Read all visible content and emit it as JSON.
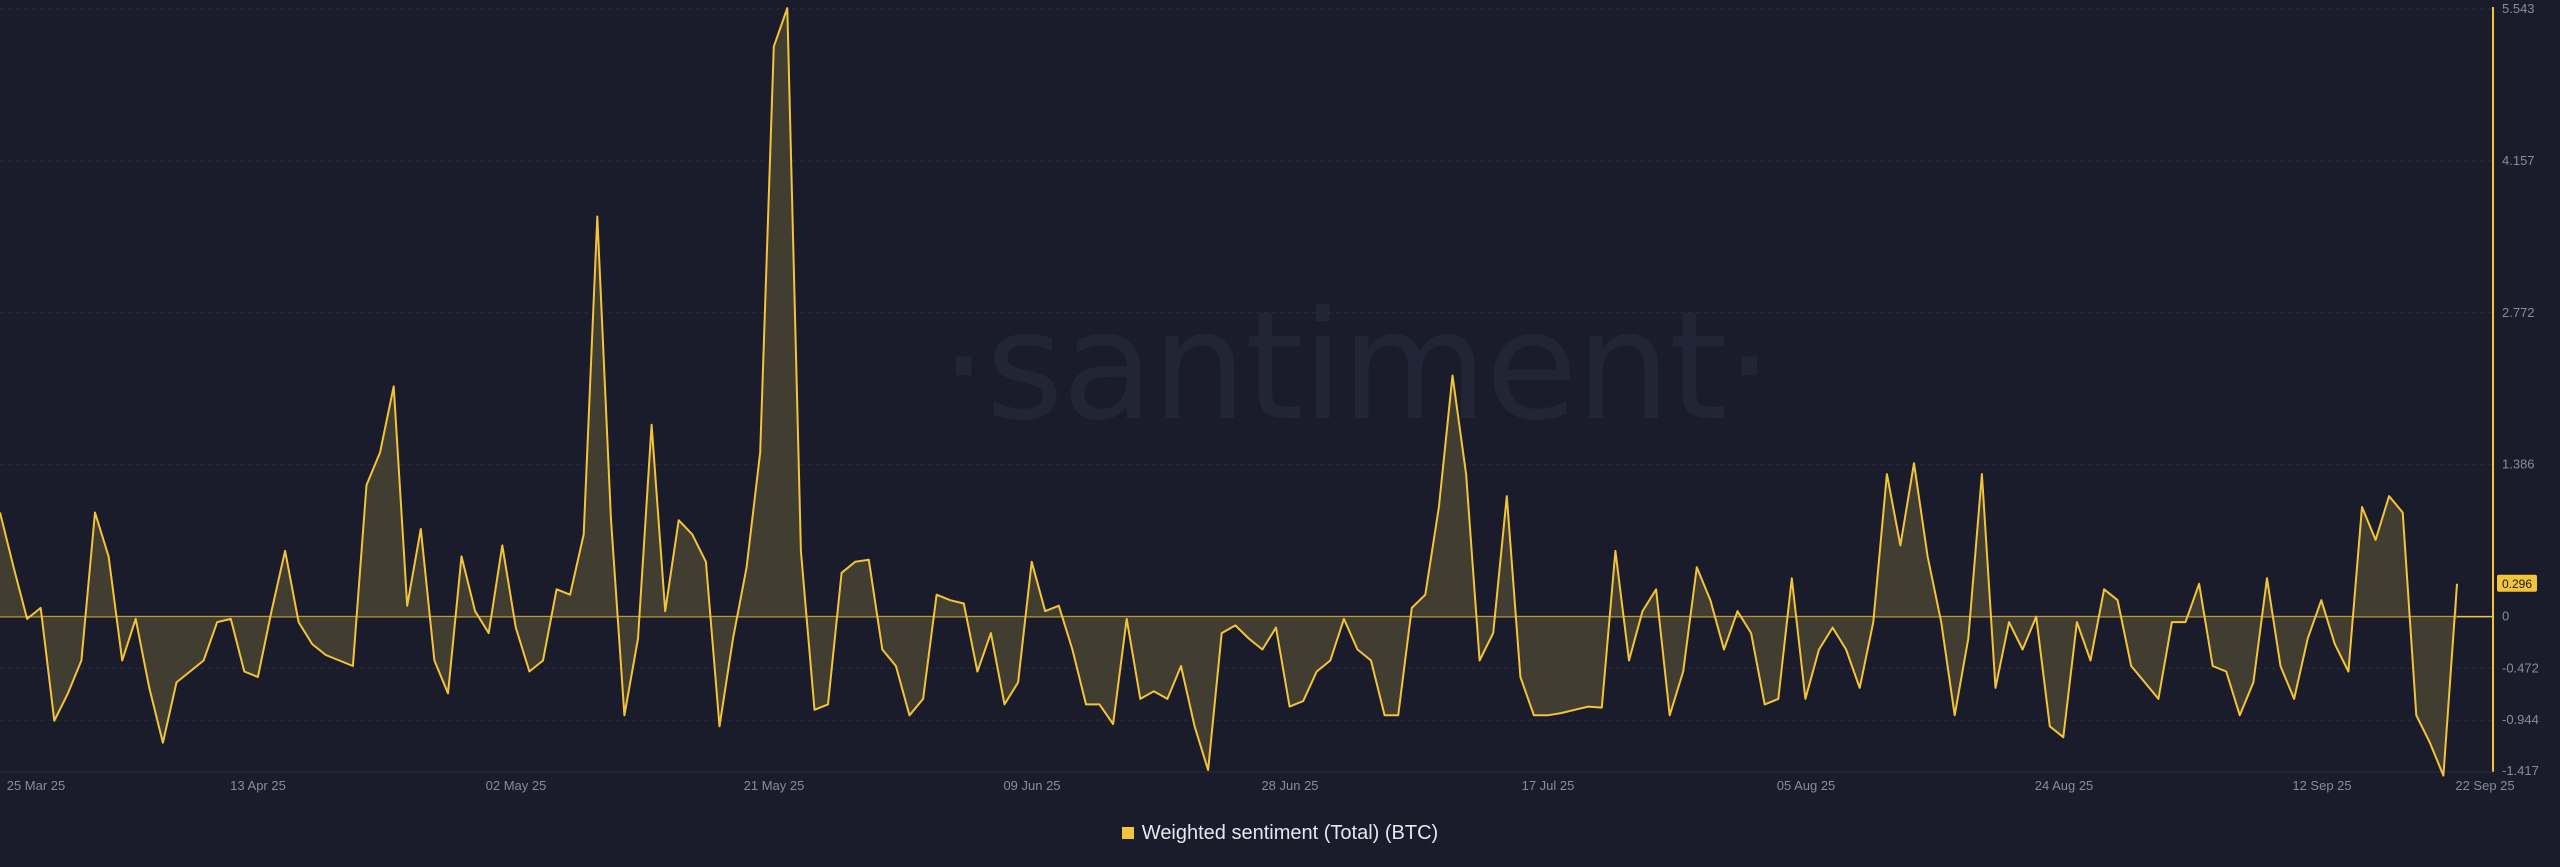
{
  "watermark": "·santiment·",
  "legend": {
    "label": "Weighted sentiment (Total) (BTC)"
  },
  "colors": {
    "background": "#1a1c2b",
    "line": "#f3c43a",
    "fill": "#4a4332",
    "grid": "#2a2d3d",
    "axis_text": "#878b9c",
    "zero_line": "#f3c43a"
  },
  "chart_data": {
    "type": "area",
    "series": [
      {
        "name": "Weighted sentiment (Total) (BTC)",
        "values": [
          0.95,
          0.45,
          -0.02,
          0.08,
          -0.95,
          -0.7,
          -0.4,
          0.95,
          0.55,
          -0.4,
          -0.02,
          -0.65,
          -1.15,
          -0.6,
          -0.5,
          -0.4,
          -0.05,
          -0.02,
          -0.5,
          -0.55,
          0.05,
          0.6,
          -0.05,
          -0.25,
          -0.35,
          -0.4,
          -0.45,
          1.2,
          1.5,
          2.1,
          0.1,
          0.8,
          -0.4,
          -0.7,
          0.55,
          0.05,
          -0.15,
          0.65,
          -0.1,
          -0.5,
          -0.4,
          0.25,
          0.2,
          0.75,
          3.65,
          0.9,
          -0.9,
          -0.2,
          1.75,
          0.05,
          0.88,
          0.75,
          0.5,
          -1.0,
          -0.2,
          0.45,
          1.5,
          5.2,
          5.55,
          0.6,
          -0.85,
          -0.8,
          0.4,
          0.5,
          0.52,
          -0.3,
          -0.45,
          -0.9,
          -0.75,
          0.2,
          0.15,
          0.12,
          -0.5,
          -0.15,
          -0.8,
          -0.6,
          0.5,
          0.05,
          0.1,
          -0.3,
          -0.8,
          -0.8,
          -0.98,
          -0.02,
          -0.75,
          -0.68,
          -0.75,
          -0.45,
          -1.0,
          -1.4,
          -0.15,
          -0.08,
          -0.2,
          -0.3,
          -0.1,
          -0.82,
          -0.77,
          -0.5,
          -0.4,
          -0.02,
          -0.3,
          -0.4,
          -0.9,
          -0.9,
          0.08,
          0.2,
          1.0,
          2.2,
          1.3,
          -0.4,
          -0.15,
          1.1,
          -0.55,
          -0.9,
          -0.9,
          -0.88,
          -0.85,
          -0.82,
          -0.83,
          0.6,
          -0.4,
          0.05,
          0.25,
          -0.9,
          -0.5,
          0.45,
          0.15,
          -0.3,
          0.05,
          -0.15,
          -0.8,
          -0.75,
          0.35,
          -0.75,
          -0.3,
          -0.1,
          -0.3,
          -0.65,
          -0.05,
          1.3,
          0.65,
          1.4,
          0.55,
          -0.05,
          -0.9,
          -0.2,
          1.3,
          -0.65,
          -0.05,
          -0.3,
          0.0,
          -1.0,
          -1.1,
          -0.05,
          -0.4,
          0.25,
          0.15,
          -0.45,
          -0.6,
          -0.75,
          -0.05,
          -0.05,
          0.3,
          -0.45,
          -0.5,
          -0.9,
          -0.6,
          0.35,
          -0.45,
          -0.75,
          -0.2,
          0.15,
          -0.25,
          -0.5,
          1.0,
          0.7,
          1.1,
          0.95,
          -0.9,
          -1.15,
          -1.45,
          0.3
        ]
      }
    ],
    "x_tick_labels": [
      "25 Mar 25",
      "13 Apr 25",
      "02 May 25",
      "21 May 25",
      "09 Jun 25",
      "28 Jun 25",
      "17 Jul 25",
      "05 Aug 25",
      "24 Aug 25",
      "12 Sep 25",
      "22 Sep 25"
    ],
    "y_ticks": [
      5.543,
      4.157,
      2.772,
      1.386,
      0,
      -0.472,
      -0.944,
      -1.417
    ],
    "y_tick_labels": [
      "5.543",
      "4.157",
      "2.772",
      "1.386",
      "0",
      "-0.472",
      "-0.944",
      "-1.417"
    ],
    "ylim": [
      -1.417,
      5.543
    ],
    "last_value_label": "0.296",
    "grid": true,
    "legend_position": "bottom-center",
    "title": "",
    "xlabel": "",
    "ylabel": ""
  }
}
